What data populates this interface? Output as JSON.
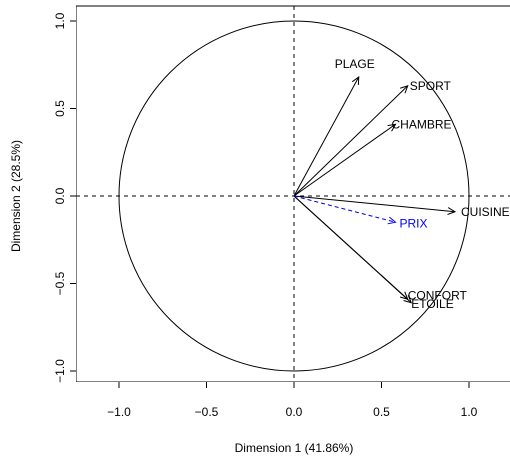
{
  "chart_data": {
    "type": "scatter",
    "subtype": "correlation-circle",
    "xlabel": "Dimension 1 (41.86%)",
    "ylabel": "Dimension 2 (28.5%)",
    "xlim": [
      -1.0,
      1.0
    ],
    "ylim": [
      -1.0,
      1.0
    ],
    "x_ticks": [
      -1.0,
      -0.5,
      0.0,
      0.5,
      1.0
    ],
    "y_ticks": [
      -1.0,
      -0.5,
      0.0,
      0.5,
      1.0
    ],
    "x_tick_labels": [
      "−1.0",
      "−0.5",
      "0.0",
      "0.5",
      "1.0"
    ],
    "y_tick_labels": [
      "−1.0",
      "−0.5",
      "0.0",
      "0.5",
      "1.0"
    ],
    "unit_circle": true,
    "reference_lines": [
      0,
      0
    ],
    "colors": {
      "active": "#000000",
      "supplementary": "#0000ee"
    },
    "variables": [
      {
        "name": "PLAGE",
        "x": 0.37,
        "y": 0.68,
        "supplementary": false
      },
      {
        "name": "SPORT",
        "x": 0.65,
        "y": 0.63,
        "supplementary": false
      },
      {
        "name": "CHAMBRE",
        "x": 0.58,
        "y": 0.41,
        "supplementary": false
      },
      {
        "name": "CUISINE",
        "x": 0.92,
        "y": -0.09,
        "supplementary": false
      },
      {
        "name": "CONFORT",
        "x": 0.65,
        "y": -0.59,
        "supplementary": false
      },
      {
        "name": "ETOILE",
        "x": 0.67,
        "y": -0.61,
        "supplementary": false
      },
      {
        "name": "PRIX",
        "x": 0.58,
        "y": -0.15,
        "supplementary": true
      }
    ]
  }
}
